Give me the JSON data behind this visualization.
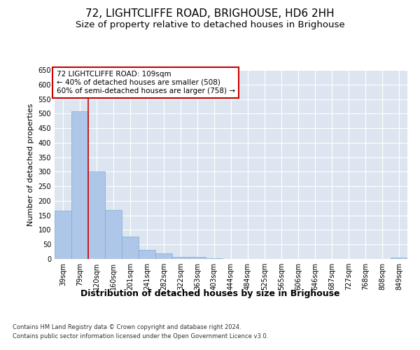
{
  "title": "72, LIGHTCLIFFE ROAD, BRIGHOUSE, HD6 2HH",
  "subtitle": "Size of property relative to detached houses in Brighouse",
  "xlabel": "Distribution of detached houses by size in Brighouse",
  "ylabel": "Number of detached properties",
  "categories": [
    "39sqm",
    "79sqm",
    "120sqm",
    "160sqm",
    "201sqm",
    "241sqm",
    "282sqm",
    "322sqm",
    "363sqm",
    "403sqm",
    "444sqm",
    "484sqm",
    "525sqm",
    "565sqm",
    "606sqm",
    "646sqm",
    "687sqm",
    "727sqm",
    "768sqm",
    "808sqm",
    "849sqm"
  ],
  "values": [
    165,
    508,
    302,
    168,
    77,
    31,
    20,
    8,
    8,
    3,
    0,
    0,
    0,
    0,
    0,
    0,
    0,
    0,
    0,
    0,
    5
  ],
  "bar_color": "#aec6e8",
  "bar_edge_color": "#7aadd4",
  "vline_x_index": 2,
  "vline_color": "#cc0000",
  "annotation_lines": [
    "72 LIGHTCLIFFE ROAD: 109sqm",
    "← 40% of detached houses are smaller (508)",
    "60% of semi-detached houses are larger (758) →"
  ],
  "annotation_box_color": "#cc0000",
  "ylim": [
    0,
    650
  ],
  "yticks": [
    0,
    50,
    100,
    150,
    200,
    250,
    300,
    350,
    400,
    450,
    500,
    550,
    600,
    650
  ],
  "plot_bg_color": "#dde6f0",
  "footer_line1": "Contains HM Land Registry data © Crown copyright and database right 2024.",
  "footer_line2": "Contains public sector information licensed under the Open Government Licence v3.0.",
  "title_fontsize": 11,
  "subtitle_fontsize": 9.5,
  "tick_fontsize": 7,
  "ylabel_fontsize": 8,
  "xlabel_fontsize": 9
}
